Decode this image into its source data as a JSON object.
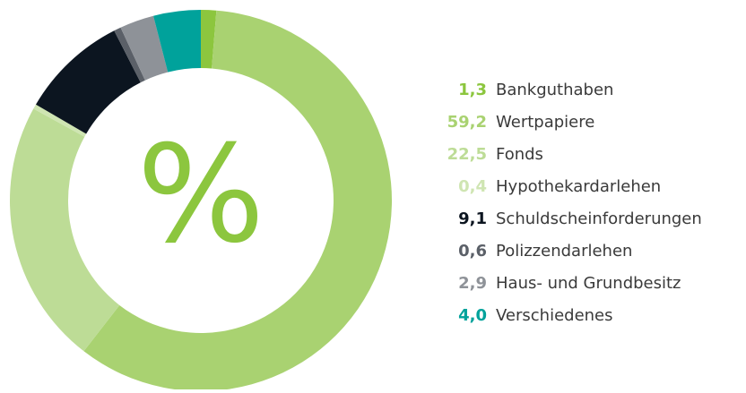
{
  "chart_data": {
    "type": "donut",
    "center_label": "%",
    "categories": [
      "Bankguthaben",
      "Wertpapiere",
      "Fonds",
      "Hypothekardarlehen",
      "Schuldscheinforderungen",
      "Polizzendarlehen",
      "Haus- und Grundbesitz",
      "Verschiedenes"
    ],
    "values": [
      1.3,
      59.2,
      22.5,
      0.4,
      9.1,
      0.6,
      2.9,
      4.0
    ],
    "value_labels": [
      "1,3",
      "59,2",
      "22,5",
      "0,4",
      "9,1",
      "0,6",
      "2,9",
      "4,0"
    ],
    "colors": [
      "#8cc63e",
      "#a9d271",
      "#bddc96",
      "#cfe5b2",
      "#0c1520",
      "#5b6068",
      "#8e9298",
      "#00a29b"
    ]
  }
}
